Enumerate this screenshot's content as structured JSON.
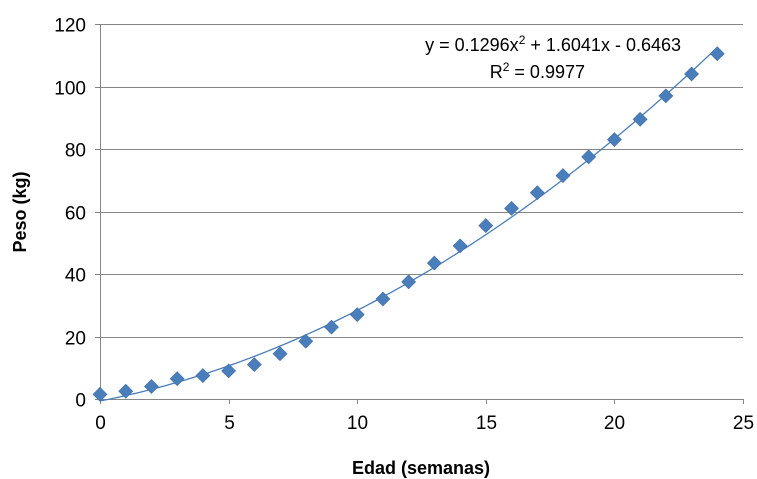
{
  "chart_data": {
    "type": "scatter",
    "xlabel": "Edad (semanas)",
    "ylabel": "Peso (kg)",
    "xlim": [
      0,
      25
    ],
    "ylim": [
      0,
      120
    ],
    "x_ticks": [
      0,
      5,
      10,
      15,
      20,
      25
    ],
    "y_ticks": [
      0,
      20,
      40,
      60,
      80,
      100,
      120
    ],
    "x_tick_labels": [
      "0",
      "5",
      "10",
      "15",
      "20",
      "25"
    ],
    "y_tick_labels": [
      "0",
      "20",
      "40",
      "60",
      "80",
      "100",
      "120"
    ],
    "grid": "horizontal",
    "legend": "none",
    "series": [
      {
        "marker": "diamond",
        "color": "#4a7ebb",
        "x": [
          0,
          1,
          2,
          3,
          4,
          5,
          6,
          7,
          8,
          9,
          10,
          11,
          12,
          13,
          14,
          15,
          16,
          17,
          18,
          19,
          20,
          21,
          22,
          23,
          24
        ],
        "y": [
          1.5,
          2.5,
          4,
          6.5,
          7.5,
          9,
          11,
          14.5,
          18.5,
          23,
          27,
          32,
          37.5,
          43.5,
          49,
          55.5,
          61,
          66,
          71.5,
          77.5,
          83,
          89.5,
          97,
          104,
          110.5
        ]
      }
    ],
    "trendline": {
      "type": "polynomial",
      "order": 2,
      "coefficients": [
        0.1296,
        1.6041,
        -0.6463
      ],
      "color": "#4a7ebb",
      "equation_prefix": "y = 0.1296x",
      "equation_suffix": " + 1.6041x - 0.6463",
      "r2_prefix": "R",
      "r2_suffix": " = 0.9977",
      "superscript": "2"
    }
  }
}
